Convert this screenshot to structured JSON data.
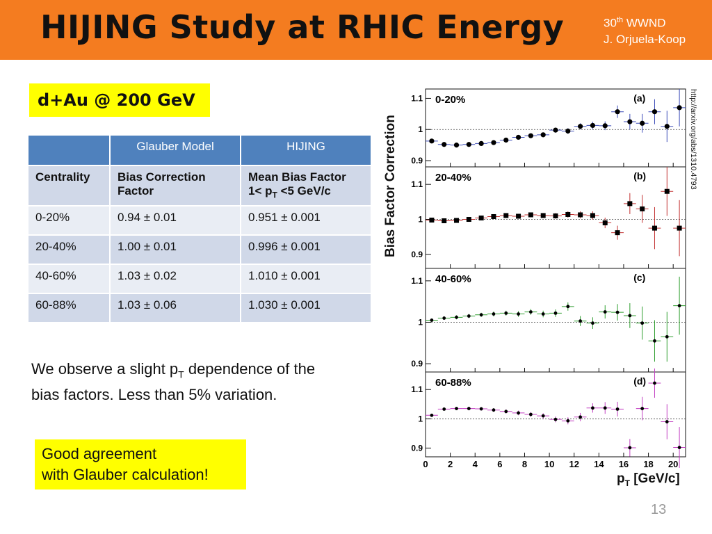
{
  "header": {
    "title": "HIJING Study at RHIC Energy",
    "conf_num": "30",
    "conf_sup": "th",
    "conf_name": " WWND",
    "author": "J. Orjuela-Koop",
    "bg_color": "#f47c20"
  },
  "energy_label": "d+Au @ 200 GeV",
  "table": {
    "col_headers": [
      "",
      "Glauber Model",
      "HIJING"
    ],
    "sub_headers": {
      "centrality": "Centrality",
      "bias": "Bias Correction Factor",
      "mean_line1": "Mean Bias Factor",
      "mean_line2_a": " 1< p",
      "mean_line2_sub": "T",
      "mean_line2_b": " <5 GeV/c"
    },
    "rows": [
      [
        "0-20%",
        "0.94 ± 0.01",
        "0.951 ± 0.001"
      ],
      [
        "20-40%",
        "1.00 ± 0.01",
        "0.996 ± 0.001"
      ],
      [
        "40-60%",
        "1.03 ± 0.02",
        "1.010 ± 0.001"
      ],
      [
        "60-88%",
        "1.03 ± 0.06",
        "1.030 ± 0.001"
      ]
    ]
  },
  "observation": {
    "part1": "We observe a slight p",
    "sub": "T",
    "part2": " dependence of the bias factors. Less than 5% variation."
  },
  "agreement": {
    "line1": "Good agreement",
    "line2": "with Glauber calculation!"
  },
  "page_number": "13",
  "chart_data": {
    "type": "scatter",
    "ylabel": "Bias Factor  Correction",
    "xlabel_main": "p",
    "xlabel_sub": "T",
    "xlabel_unit": " [GeV/c]",
    "source": "http://arxiv.org/abs/1310.4793",
    "xlim": [
      0,
      21
    ],
    "x_ticks": [
      "0",
      "2",
      "4",
      "6",
      "8",
      "10",
      "12",
      "14",
      "16",
      "18",
      "20"
    ],
    "x": [
      0.5,
      1.5,
      2.5,
      3.5,
      4.5,
      5.5,
      6.5,
      7.5,
      8.5,
      9.5,
      10.5,
      11.5,
      12.5,
      13.5,
      14.5,
      15.5,
      16.5,
      17.5,
      18.5,
      19.5,
      20.5
    ],
    "panels": [
      {
        "label": "0-20%",
        "tag": "(a)",
        "color": "#3b4bb8",
        "marker": "circle",
        "ylim": [
          0.88,
          1.13
        ],
        "y_ticks": [
          "0.9",
          "1",
          "1.1"
        ],
        "values": [
          0.963,
          0.952,
          0.95,
          0.952,
          0.955,
          0.958,
          0.966,
          0.975,
          0.98,
          0.983,
          0.998,
          0.995,
          1.01,
          1.013,
          1.012,
          1.057,
          1.025,
          1.02,
          1.057,
          1.01,
          1.07
        ],
        "errors": [
          0.004,
          0.004,
          0.004,
          0.004,
          0.005,
          0.005,
          0.005,
          0.006,
          0.006,
          0.007,
          0.008,
          0.009,
          0.01,
          0.012,
          0.014,
          0.02,
          0.025,
          0.03,
          0.04,
          0.05,
          0.06
        ]
      },
      {
        "label": "20-40%",
        "tag": "(b)",
        "color": "#c23030",
        "marker": "square",
        "ylim": [
          0.86,
          1.15
        ],
        "y_ticks": [
          "0.9",
          "1",
          "1.1"
        ],
        "values": [
          0.998,
          0.996,
          0.997,
          1.0,
          1.004,
          1.008,
          1.011,
          1.009,
          1.013,
          1.011,
          1.01,
          1.014,
          1.013,
          1.011,
          0.99,
          0.962,
          1.045,
          1.03,
          0.975,
          1.08,
          0.975
        ],
        "errors": [
          0.004,
          0.004,
          0.004,
          0.004,
          0.005,
          0.005,
          0.005,
          0.006,
          0.006,
          0.007,
          0.008,
          0.009,
          0.01,
          0.012,
          0.015,
          0.02,
          0.03,
          0.04,
          0.06,
          0.07,
          0.08
        ]
      },
      {
        "label": "40-60%",
        "tag": "(c)",
        "color": "#2e9e2e",
        "marker": "dot",
        "ylim": [
          0.88,
          1.13
        ],
        "y_ticks": [
          "0.9",
          "1",
          "1.1"
        ],
        "values": [
          1.005,
          1.01,
          1.012,
          1.015,
          1.018,
          1.02,
          1.022,
          1.02,
          1.025,
          1.02,
          1.022,
          1.038,
          1.003,
          0.998,
          1.025,
          1.024,
          1.016,
          0.998,
          0.955,
          0.965,
          1.04
        ],
        "errors": [
          0.004,
          0.004,
          0.005,
          0.005,
          0.005,
          0.006,
          0.006,
          0.007,
          0.007,
          0.008,
          0.009,
          0.01,
          0.012,
          0.014,
          0.016,
          0.02,
          0.03,
          0.04,
          0.05,
          0.06,
          0.07
        ]
      },
      {
        "label": "60-88%",
        "tag": "(d)",
        "color": "#c23fc2",
        "marker": "dot",
        "ylim": [
          0.87,
          1.16
        ],
        "y_ticks": [
          "0.9",
          "1",
          "1.1"
        ],
        "values": [
          1.012,
          1.033,
          1.035,
          1.035,
          1.034,
          1.03,
          1.025,
          1.02,
          1.015,
          1.01,
          0.998,
          0.993,
          1.006,
          1.037,
          1.037,
          1.033,
          0.901,
          1.035,
          1.122,
          0.99,
          0.902
        ],
        "errors": [
          0.005,
          0.005,
          0.005,
          0.006,
          0.006,
          0.006,
          0.007,
          0.008,
          0.008,
          0.009,
          0.01,
          0.012,
          0.014,
          0.016,
          0.02,
          0.025,
          0.03,
          0.04,
          0.05,
          0.06,
          0.07
        ]
      }
    ]
  }
}
